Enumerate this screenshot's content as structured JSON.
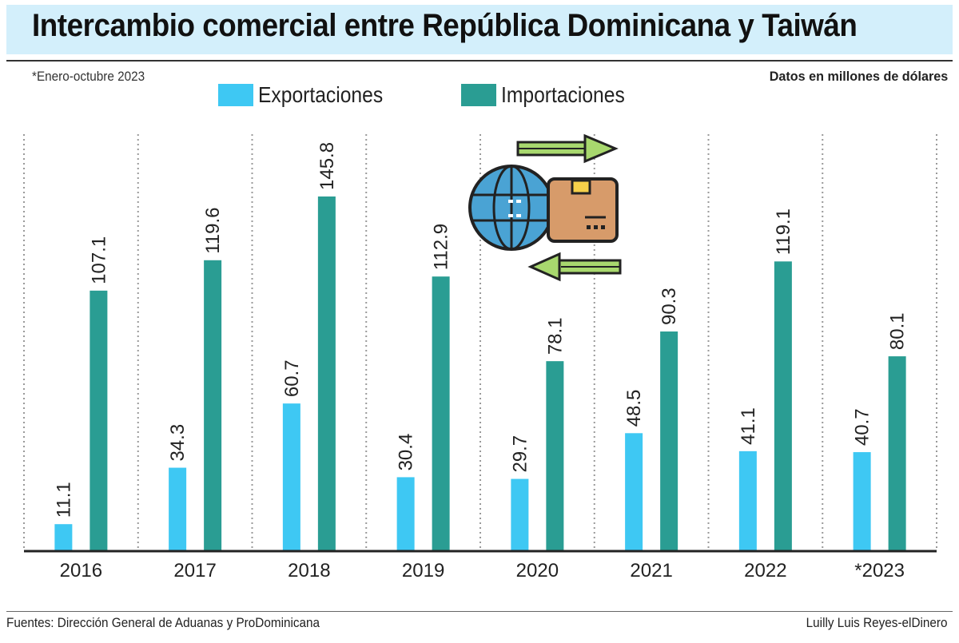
{
  "header": {
    "title": "Intercambio comercial entre República Dominicana y Taiwán",
    "note": "*Enero-octubre 2023",
    "units": "Datos en millones de dólares"
  },
  "footer": {
    "source": "Fuentes: Dirección General de Aduanas y ProDominicana",
    "credit": "Luilly Luis Reyes-elDinero"
  },
  "colors": {
    "exportaciones": "#3ec8f3",
    "importaciones": "#2a9d93",
    "title_band": "#d3effb"
  },
  "illustration": {
    "icon": "globe-box-trade-icon"
  },
  "chart_data": {
    "type": "bar",
    "categories": [
      "2016",
      "2017",
      "2018",
      "2019",
      "2020",
      "2021",
      "2022",
      "*2023"
    ],
    "series": [
      {
        "name": "Exportaciones",
        "values": [
          11.1,
          34.3,
          60.7,
          30.4,
          29.7,
          48.5,
          41.1,
          40.7
        ]
      },
      {
        "name": "Importaciones",
        "values": [
          107.1,
          119.6,
          145.8,
          112.9,
          78.1,
          90.3,
          119.1,
          80.1
        ]
      }
    ],
    "value_labels": [
      [
        "11.1",
        "34.3",
        "60.7",
        "30.4",
        "29.7",
        "48.5",
        "41.1",
        "40.7"
      ],
      [
        "107.1",
        "119.6",
        "145.8",
        "112.9",
        "78.1",
        "90.3",
        "119.1",
        "80.1"
      ]
    ],
    "ylim": [
      0,
      145.8
    ],
    "legend": "top-center",
    "grid": "vertical-dotted"
  }
}
